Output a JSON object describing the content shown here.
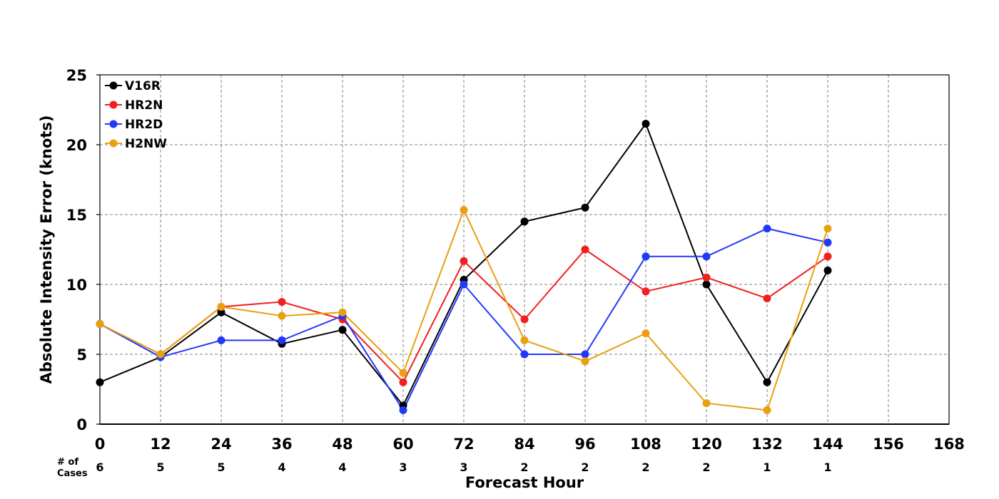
{
  "chart_data": {
    "type": "line",
    "xlabel": "Forecast Hour",
    "ylabel": "Absolute Intensity Error (knots)",
    "xlim": [
      0,
      168
    ],
    "ylim": [
      0,
      25
    ],
    "x_ticks": [
      0,
      12,
      24,
      36,
      48,
      60,
      72,
      84,
      96,
      108,
      120,
      132,
      144,
      156,
      168
    ],
    "y_ticks": [
      0,
      5,
      10,
      15,
      20,
      25
    ],
    "grid": true,
    "legend_position": "top-left",
    "cases_label": "# of Cases",
    "cases_label_lines": [
      "# of",
      "Cases"
    ],
    "cases": [
      {
        "x": 0,
        "n": "6"
      },
      {
        "x": 12,
        "n": "5"
      },
      {
        "x": 24,
        "n": "5"
      },
      {
        "x": 36,
        "n": "4"
      },
      {
        "x": 48,
        "n": "4"
      },
      {
        "x": 60,
        "n": "3"
      },
      {
        "x": 72,
        "n": "3"
      },
      {
        "x": 84,
        "n": "2"
      },
      {
        "x": 96,
        "n": "2"
      },
      {
        "x": 108,
        "n": "2"
      },
      {
        "x": 120,
        "n": "2"
      },
      {
        "x": 132,
        "n": "1"
      },
      {
        "x": 144,
        "n": "1"
      }
    ],
    "x": [
      0,
      12,
      24,
      36,
      48,
      60,
      72,
      84,
      96,
      108,
      120,
      132,
      144
    ],
    "series": [
      {
        "name": "V16R",
        "color": "#000000",
        "values": [
          3.0,
          4.8,
          8.0,
          5.75,
          6.75,
          1.33,
          10.33,
          14.5,
          15.5,
          21.5,
          10.0,
          3.0,
          11.0
        ]
      },
      {
        "name": "HR2N",
        "color": "#f02020",
        "values": [
          7.17,
          5.0,
          8.4,
          8.75,
          7.5,
          3.0,
          11.67,
          7.5,
          12.5,
          9.5,
          10.5,
          9.0,
          12.0
        ]
      },
      {
        "name": "HR2D",
        "color": "#2038f8",
        "values": [
          7.17,
          4.8,
          6.0,
          6.0,
          7.75,
          1.0,
          10.0,
          5.0,
          5.0,
          12.0,
          12.0,
          14.0,
          13.0
        ]
      },
      {
        "name": "H2NW",
        "color": "#e8a010",
        "values": [
          7.17,
          5.0,
          8.4,
          7.75,
          8.0,
          3.67,
          15.33,
          6.0,
          4.5,
          6.5,
          1.5,
          1.0,
          14.0
        ]
      }
    ]
  }
}
